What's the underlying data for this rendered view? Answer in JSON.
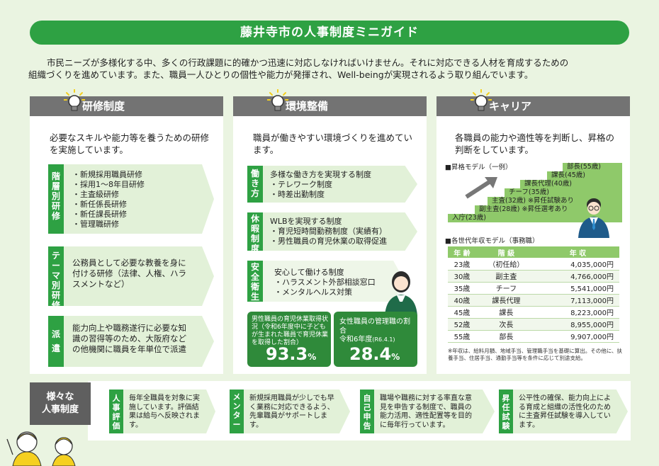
{
  "banner_title": "藤井寺市の人事制度ミニガイド",
  "intro": {
    "line1": "市民ニーズが多様化する中、多くの行政課題に的確かつ迅速に対応しなければいけません。それに対応できる人材を育成するための",
    "line2": "組織づくりを進めています。また、職員一人ひとりの個性や能力が発揮され、Well-beingが実現されるよう取り組んでいます。"
  },
  "training": {
    "title": "研修制度",
    "lead": "必要なスキルや能力等を養うための研修を実施しています。",
    "blocks": [
      {
        "tag": "階層別研修",
        "items": [
          "・新規採用職員研修",
          "・採用1～8年目研修",
          "・主査級研修",
          "・新任係長研修",
          "・新任課長研修",
          "・管理職研修"
        ]
      },
      {
        "tag": "テーマ別研修",
        "text": "公務員として必要な教養を身に付ける研修（法律、人権、ハラスメントなど）"
      },
      {
        "tag": "派遣",
        "text": "能力向上や職務遂行に必要な知識の習得等のため、大阪府などの他機関に職員を年単位で派遣"
      }
    ]
  },
  "environment": {
    "title": "環境整備",
    "lead": "職員が働きやすい環境づくりを進めています。",
    "blocks": [
      {
        "tag": "働き方",
        "items": [
          "多様な働き方を実現する制度",
          "・テレワーク制度",
          "・時差出勤制度"
        ]
      },
      {
        "tag": "休暇制度",
        "items": [
          "WLBを実現する制度",
          "・育児短時間勤務制度（実績有）",
          "・男性職員の育児休業の取得促進"
        ]
      },
      {
        "tag": "安全衛生",
        "items": [
          "安心して働ける制度",
          "・ハラスメント外部相談窓口",
          "・メンタルヘルス対策"
        ]
      }
    ],
    "stat1": {
      "caption": "男性職員の育児休業取得状況（令和6年度中に子どもが生まれた職員で育児休業を取得した割合）",
      "value": "93.3",
      "unit": "%"
    },
    "stat2": {
      "caption1": "女性職員の管理職の割合",
      "caption2": "令和6年度",
      "caption3": "(R6.4.1)",
      "value": "28.4",
      "unit": "%"
    }
  },
  "career": {
    "title": "キャリア",
    "lead": "各職員の能力や適性等を判断し、昇格の判断をしています。",
    "model_label": "■昇格モデル（一例）",
    "stairs": [
      "部長(55歳)",
      "課長(45歳)",
      "課長代理(40歳)",
      "チーフ(35歳)",
      "主査(32歳) ※昇任試験あり",
      "副主査(28歳) ※昇任選考あり",
      "入庁(23歳)"
    ],
    "salary_label": "■各世代年収モデル（事務職）",
    "headers": [
      "年 齢",
      "階 級",
      "年 収"
    ],
    "rows": [
      [
        "23歳",
        "（初任給）",
        "4,035,000円"
      ],
      [
        "30歳",
        "副主査",
        "4,766,000円"
      ],
      [
        "35歳",
        "チーフ",
        "5,541,000円"
      ],
      [
        "40歳",
        "課長代理",
        "7,113,000円"
      ],
      [
        "45歳",
        "課長",
        "8,223,000円"
      ],
      [
        "52歳",
        "次長",
        "8,955,000円"
      ],
      [
        "55歳",
        "部長",
        "9,907,000円"
      ]
    ],
    "note": "※年収は、給料月額、地域手当、管理職手当を基礎に算出。その他に、扶養手当、住居手当、通勤手当等を条件に応じて別途支給。"
  },
  "various": {
    "label_line1": "様々な",
    "label_line2": "人事制度",
    "items": [
      {
        "tag": "人事評価",
        "text": "毎年全職員を対象に実施しています。評価結果は給与へ反映されます。"
      },
      {
        "tag": "メンター",
        "text": "新規採用職員が少しでも早く業務に対応できるよう、先輩職員がサポートします。"
      },
      {
        "tag": "自己申告",
        "text": "職場や職務に対する率直な意見を申告する制度で、職員の能力活用、適性配置等を目的に毎年行っています。"
      },
      {
        "tag": "昇任試験",
        "text": "公平性の確保、能力向上による育成と組織の活性化のために主査昇任試験を導入しています。"
      }
    ]
  },
  "colors": {
    "accent": "#2ea143",
    "header_gray": "#737373",
    "pale_green": "#e2f1d8"
  }
}
